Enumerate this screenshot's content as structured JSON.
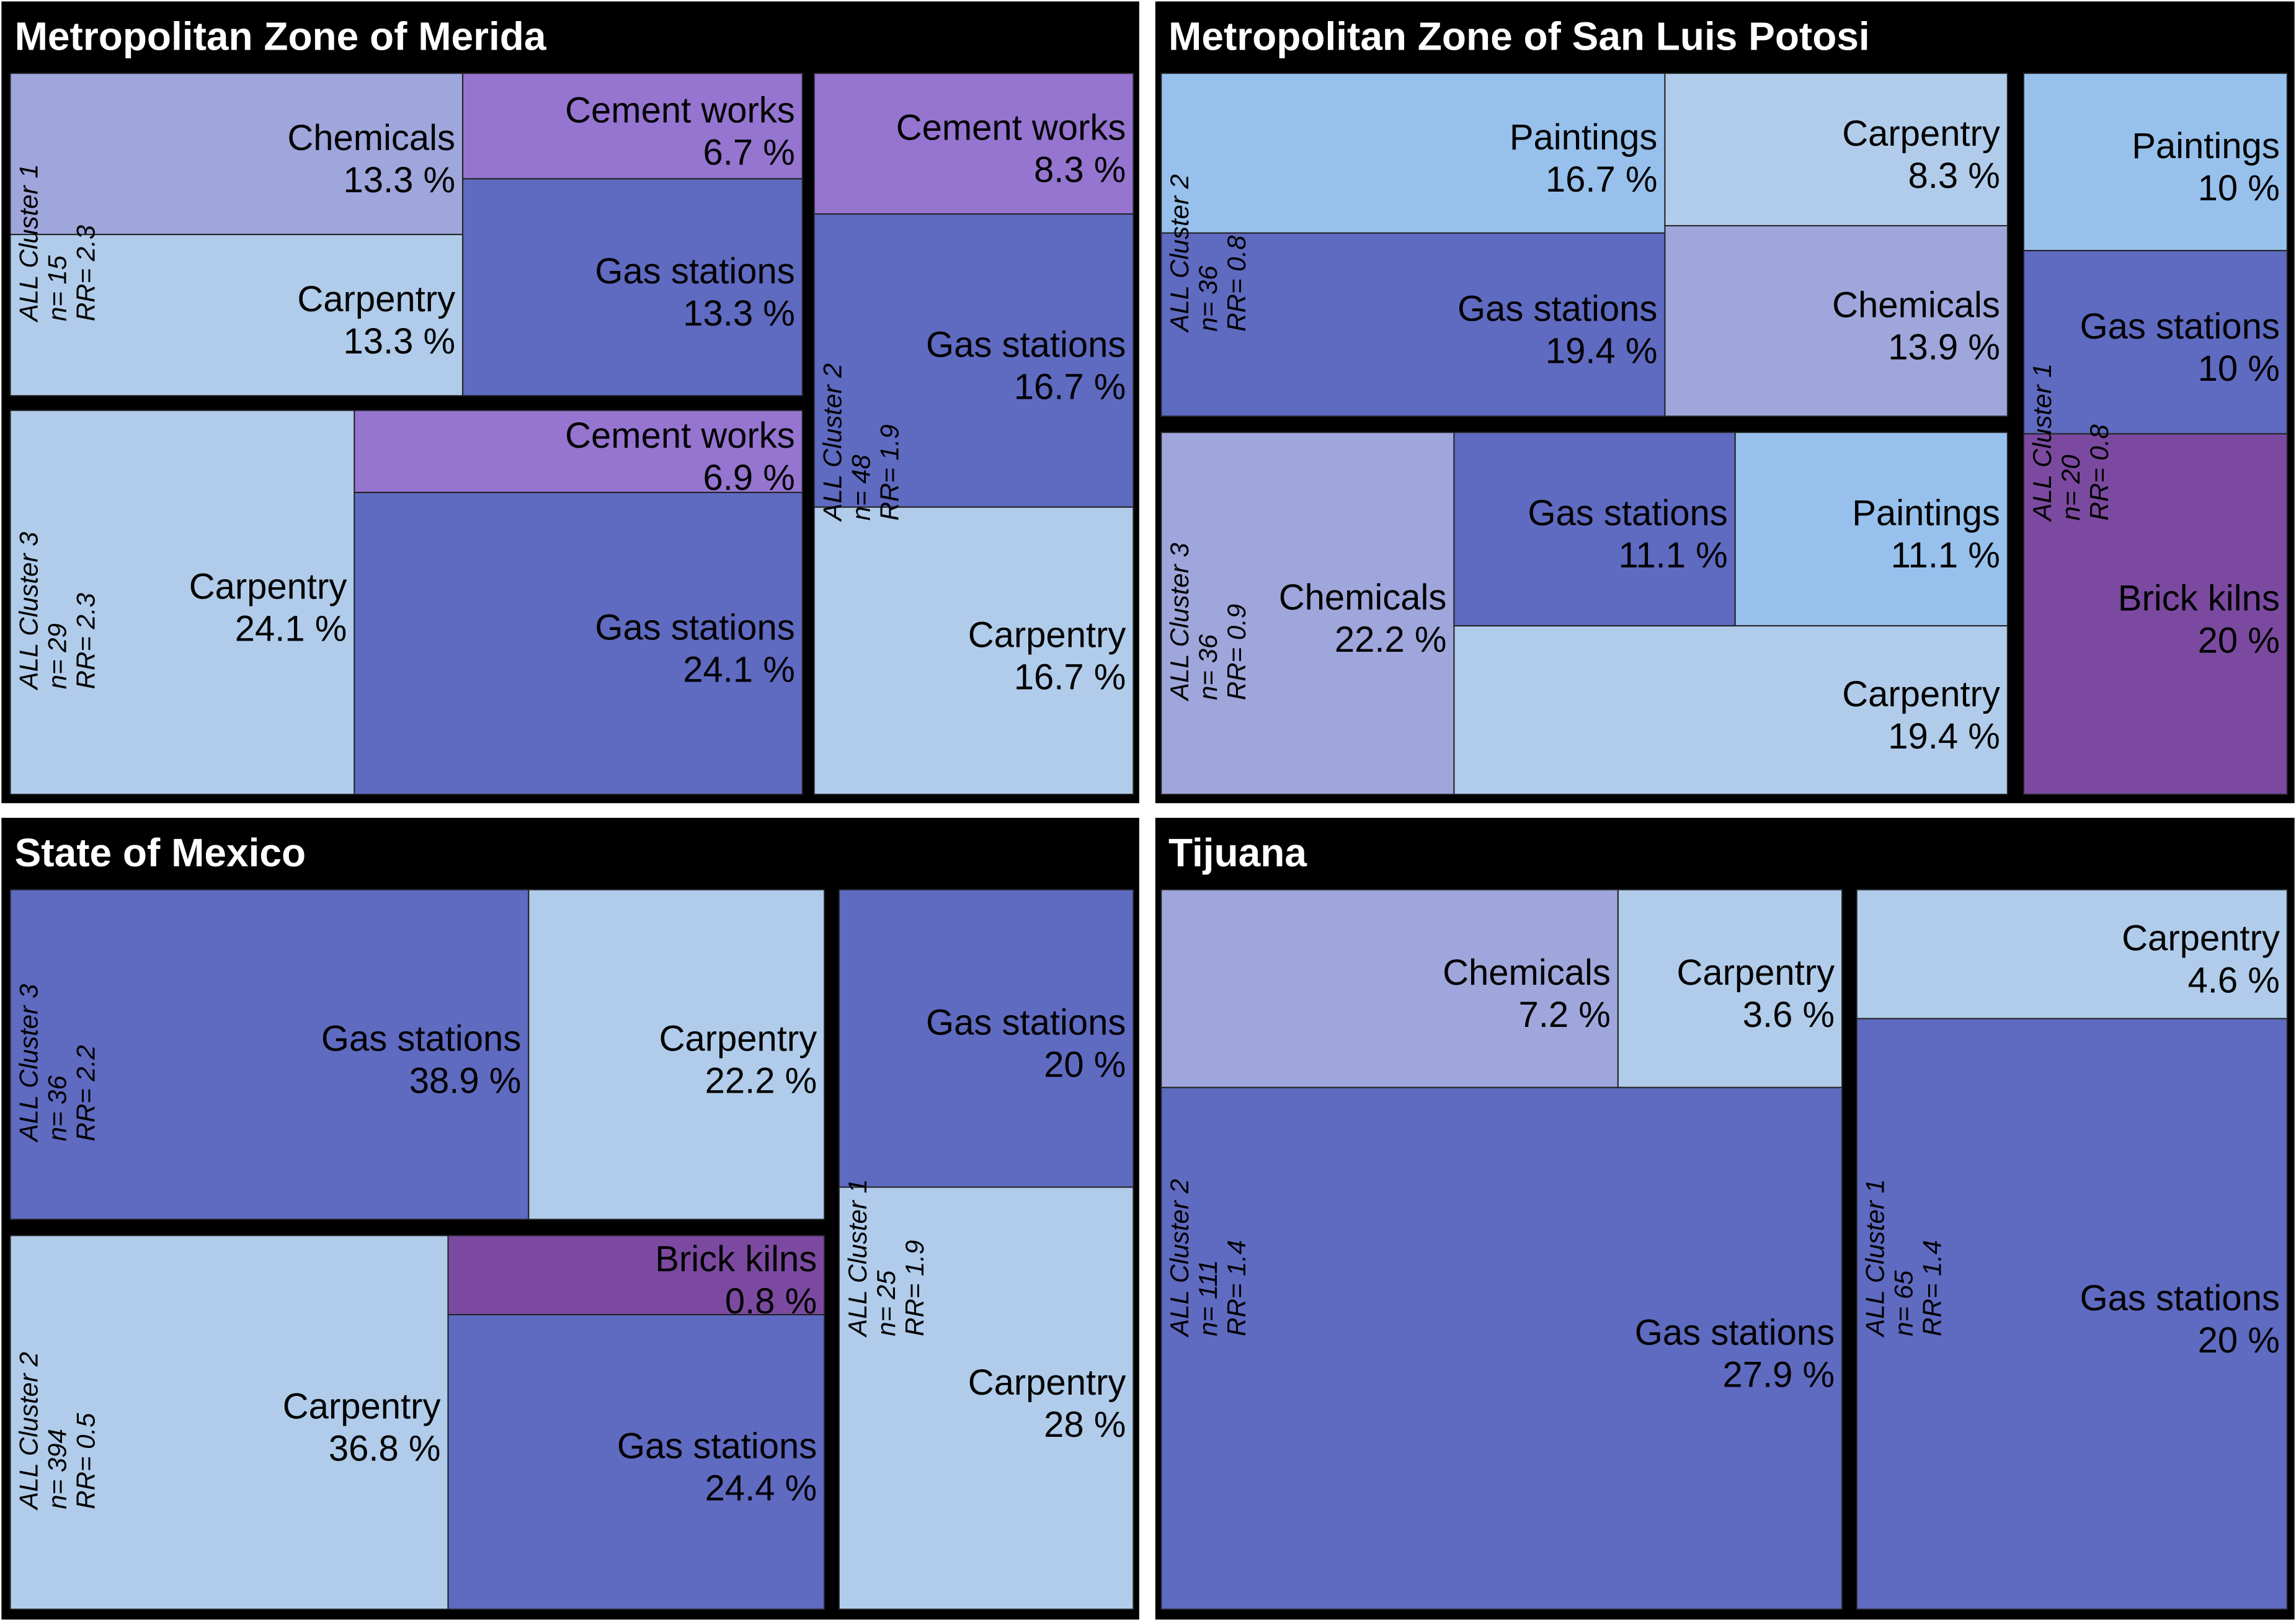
{
  "colors": {
    "Chemicals": "#9EA6DB",
    "Cement works": "#9575D0",
    "Gas stations": "#5F6AC1",
    "Carpentry": "#B0CCEA",
    "Paintings": "#97C1EC",
    "Brick kilns": "#7B4AA0",
    "frame": "#000000",
    "background": "#ffffff"
  },
  "chart_data": [
    {
      "type": "treemap",
      "title": "Metropolitan Zone of Merida",
      "clusters": [
        {
          "name": "ALL Cluster 1",
          "n": "n= 15",
          "rr": "RR= 2.3",
          "items": [
            {
              "category": "Chemicals",
              "value": 13.3,
              "label": "13.3 %"
            },
            {
              "category": "Carpentry",
              "value": 13.3,
              "label": "13.3 %"
            },
            {
              "category": "Cement works",
              "value": 6.7,
              "label": "6.7 %"
            },
            {
              "category": "Gas stations",
              "value": 13.3,
              "label": "13.3 %"
            }
          ]
        },
        {
          "name": "ALL Cluster 3",
          "n": "n= 29",
          "rr": "RR= 2.3",
          "items": [
            {
              "category": "Carpentry",
              "value": 24.1,
              "label": "24.1 %"
            },
            {
              "category": "Cement works",
              "value": 6.9,
              "label": "6.9 %"
            },
            {
              "category": "Gas stations",
              "value": 24.1,
              "label": "24.1 %"
            }
          ]
        },
        {
          "name": "ALL Cluster 2",
          "n": "n= 48",
          "rr": "RR= 1.9",
          "items": [
            {
              "category": "Cement works",
              "value": 8.3,
              "label": "8.3 %"
            },
            {
              "category": "Gas stations",
              "value": 16.7,
              "label": "16.7 %"
            },
            {
              "category": "Carpentry",
              "value": 16.7,
              "label": "16.7 %"
            }
          ]
        }
      ]
    },
    {
      "type": "treemap",
      "title": "Metropolitan Zone of San Luis Potosi",
      "clusters": [
        {
          "name": "ALL Cluster 2",
          "n": "n= 36",
          "rr": "RR= 0.8",
          "items": [
            {
              "category": "Paintings",
              "value": 16.7,
              "label": "16.7 %"
            },
            {
              "category": "Gas stations",
              "value": 19.4,
              "label": "19.4 %"
            },
            {
              "category": "Carpentry",
              "value": 8.3,
              "label": "8.3 %"
            },
            {
              "category": "Chemicals",
              "value": 13.9,
              "label": "13.9 %"
            }
          ]
        },
        {
          "name": "ALL Cluster 3",
          "n": "n= 36",
          "rr": "RR= 0.9",
          "items": [
            {
              "category": "Chemicals",
              "value": 22.2,
              "label": "22.2 %"
            },
            {
              "category": "Gas stations",
              "value": 11.1,
              "label": "11.1 %"
            },
            {
              "category": "Paintings",
              "value": 11.1,
              "label": "11.1 %"
            },
            {
              "category": "Carpentry",
              "value": 19.4,
              "label": "19.4 %"
            }
          ]
        },
        {
          "name": "ALL Cluster 1",
          "n": "n= 20",
          "rr": "RR= 0.8",
          "items": [
            {
              "category": "Paintings",
              "value": 10,
              "label": "10 %"
            },
            {
              "category": "Gas stations",
              "value": 10,
              "label": "10 %"
            },
            {
              "category": "Brick kilns",
              "value": 20,
              "label": "20 %"
            }
          ]
        }
      ]
    },
    {
      "type": "treemap",
      "title": "State of Mexico",
      "clusters": [
        {
          "name": "ALL Cluster 3",
          "n": "n= 36",
          "rr": "RR= 2.2",
          "items": [
            {
              "category": "Gas stations",
              "value": 38.9,
              "label": "38.9 %"
            },
            {
              "category": "Carpentry",
              "value": 22.2,
              "label": "22.2 %"
            }
          ]
        },
        {
          "name": "ALL Cluster 2",
          "n": "n= 394",
          "rr": "RR= 0.5",
          "items": [
            {
              "category": "Carpentry",
              "value": 36.8,
              "label": "36.8 %"
            },
            {
              "category": "Brick kilns",
              "value": 0.8,
              "label": "0.8 %"
            },
            {
              "category": "Gas stations",
              "value": 24.4,
              "label": "24.4 %"
            }
          ]
        },
        {
          "name": "ALL Cluster 1",
          "n": "n= 25",
          "rr": "RR= 1.9",
          "items": [
            {
              "category": "Gas stations",
              "value": 20,
              "label": "20 %"
            },
            {
              "category": "Carpentry",
              "value": 28,
              "label": "28 %"
            }
          ]
        }
      ]
    },
    {
      "type": "treemap",
      "title": "Tijuana",
      "clusters": [
        {
          "name": "ALL Cluster 2",
          "n": "n= 111",
          "rr": "RR= 1.4",
          "items": [
            {
              "category": "Chemicals",
              "value": 7.2,
              "label": "7.2 %"
            },
            {
              "category": "Carpentry",
              "value": 3.6,
              "label": "3.6 %"
            },
            {
              "category": "Gas stations",
              "value": 27.9,
              "label": "27.9 %"
            }
          ]
        },
        {
          "name": "ALL Cluster 1",
          "n": "n= 65",
          "rr": "RR= 1.4",
          "items": [
            {
              "category": "Carpentry",
              "value": 4.6,
              "label": "4.6 %"
            },
            {
              "category": "Gas stations",
              "value": 20,
              "label": "20 %"
            }
          ]
        }
      ]
    }
  ]
}
